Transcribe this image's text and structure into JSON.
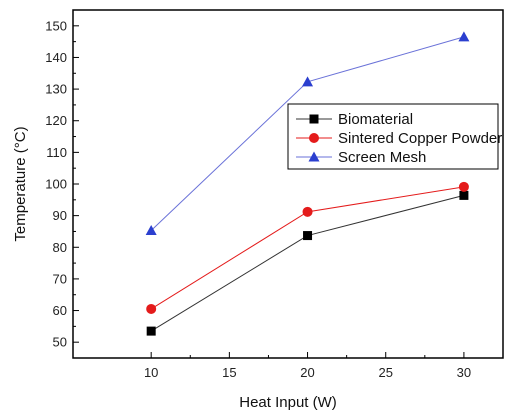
{
  "chart_data": {
    "type": "line",
    "title": "",
    "xlabel": "Heat Input (W)",
    "ylabel": "Temperature (°C)",
    "x": [
      10,
      20,
      30
    ],
    "xlim": [
      5,
      32.5
    ],
    "ylim": [
      45,
      155
    ],
    "xticks": [
      10,
      15,
      20,
      25,
      30
    ],
    "yticks": [
      50,
      60,
      70,
      80,
      90,
      100,
      110,
      120,
      130,
      140,
      150
    ],
    "grid": false,
    "legend_position": "right",
    "series": [
      {
        "name": "Biomaterial",
        "values": [
          53.5,
          83.7,
          96.4
        ],
        "color": "#000000",
        "line_color": "#333333",
        "marker": "square"
      },
      {
        "name": "Sintered Copper Powder",
        "values": [
          60.5,
          91.2,
          99.1
        ],
        "color": "#e41b1b",
        "line_color": "#e41b1b",
        "marker": "circle"
      },
      {
        "name": "Screen Mesh",
        "values": [
          85.3,
          132.3,
          146.5
        ],
        "color": "#2b3fcf",
        "line_color": "#6a72d8",
        "marker": "triangle"
      }
    ]
  }
}
